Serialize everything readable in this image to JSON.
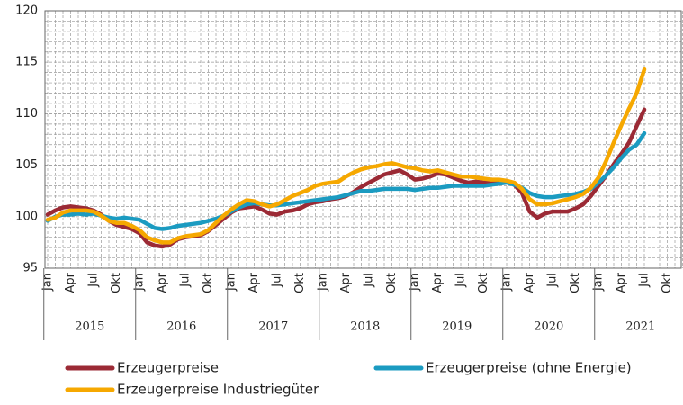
{
  "chart_data": {
    "type": "line",
    "categories": [
      "Jan",
      null,
      null,
      "Apr",
      null,
      null,
      "Jul",
      null,
      null,
      "Okt",
      null,
      null,
      "Jan",
      null,
      null,
      "Apr",
      null,
      null,
      "Jul",
      null,
      null,
      "Okt",
      null,
      null,
      "Jan",
      null,
      null,
      "Apr",
      null,
      null,
      "Jul",
      null,
      null,
      "Okt",
      null,
      null,
      "Jan",
      null,
      null,
      "Apr",
      null,
      null,
      "Jul",
      null,
      null,
      "Okt",
      null,
      null,
      "Jan",
      null,
      null,
      "Apr",
      null,
      null,
      "Jul",
      null,
      null,
      "Okt",
      null,
      null,
      "Jan",
      null,
      null,
      "Apr",
      null,
      null,
      "Jul",
      null,
      null,
      "Okt",
      null,
      null,
      "Jan",
      null,
      null,
      "Apr",
      null,
      null,
      "Jul",
      null,
      null,
      "Okt",
      null,
      null
    ],
    "years": [
      "2015",
      "2016",
      "2017",
      "2018",
      "2019",
      "2020",
      "2021"
    ],
    "ylim": [
      95,
      120
    ],
    "yticks": [
      95,
      100,
      105,
      110,
      115,
      120
    ],
    "minor_grid_step": 1,
    "grid": true,
    "legend": "bottom",
    "series": [
      {
        "name": "Erzeugerpreise",
        "color": "#9b2a35",
        "values": [
          100.2,
          100.6,
          100.9,
          101.0,
          100.9,
          100.8,
          100.6,
          100.2,
          99.6,
          99.2,
          99.0,
          98.8,
          98.4,
          97.5,
          97.2,
          97.1,
          97.3,
          97.8,
          98.0,
          98.1,
          98.2,
          98.6,
          99.2,
          99.8,
          100.4,
          100.8,
          100.9,
          101.0,
          100.7,
          100.3,
          100.2,
          100.5,
          100.6,
          100.8,
          101.2,
          101.4,
          101.5,
          101.7,
          101.8,
          102.0,
          102.4,
          102.9,
          103.3,
          103.7,
          104.1,
          104.3,
          104.5,
          104.1,
          103.6,
          103.7,
          103.9,
          104.2,
          104.1,
          103.8,
          103.5,
          103.3,
          103.4,
          103.3,
          103.4,
          103.5,
          103.4,
          103.1,
          102.3,
          100.5,
          99.9,
          100.3,
          100.5,
          100.5,
          100.5,
          100.8,
          101.2,
          102.0,
          103.0,
          104.0,
          105.1,
          106.1,
          107.2,
          108.8,
          110.4,
          null,
          null,
          null,
          null,
          null
        ]
      },
      {
        "name": "Erzeugerpreise (ohne Energie)",
        "color": "#1b9bc1",
        "values": [
          99.6,
          100.0,
          100.2,
          100.2,
          100.3,
          100.2,
          100.3,
          100.1,
          99.9,
          99.8,
          99.9,
          99.8,
          99.7,
          99.3,
          98.9,
          98.8,
          98.9,
          99.1,
          99.2,
          99.3,
          99.4,
          99.6,
          99.8,
          100.1,
          100.5,
          100.9,
          101.2,
          101.3,
          101.2,
          101.1,
          101.1,
          101.2,
          101.3,
          101.4,
          101.5,
          101.6,
          101.7,
          101.8,
          101.9,
          102.1,
          102.3,
          102.5,
          102.5,
          102.6,
          102.7,
          102.7,
          102.7,
          102.7,
          102.6,
          102.7,
          102.8,
          102.8,
          102.9,
          103.0,
          103.0,
          103.0,
          103.0,
          103.0,
          103.1,
          103.2,
          103.3,
          103.1,
          102.8,
          102.3,
          102.0,
          101.9,
          101.9,
          102.0,
          102.1,
          102.2,
          102.4,
          102.7,
          103.3,
          104.0,
          104.8,
          105.7,
          106.5,
          107.0,
          108.1,
          null,
          null,
          null,
          null,
          null
        ]
      },
      {
        "name": "Erzeugerpreise Industriegüter",
        "color": "#f6a800",
        "values": [
          99.7,
          99.9,
          100.4,
          100.6,
          100.6,
          100.6,
          100.5,
          100.1,
          99.6,
          99.4,
          99.4,
          99.1,
          98.7,
          98.0,
          97.7,
          97.5,
          97.5,
          97.9,
          98.1,
          98.2,
          98.3,
          98.7,
          99.4,
          100.1,
          100.7,
          101.2,
          101.6,
          101.5,
          101.2,
          101.0,
          101.2,
          101.6,
          102.0,
          102.3,
          102.6,
          103.0,
          103.2,
          103.3,
          103.4,
          103.9,
          104.3,
          104.6,
          104.8,
          104.9,
          105.1,
          105.2,
          105.0,
          104.8,
          104.7,
          104.5,
          104.4,
          104.5,
          104.3,
          104.1,
          103.9,
          103.9,
          103.8,
          103.7,
          103.6,
          103.6,
          103.5,
          103.3,
          102.7,
          101.7,
          101.2,
          101.2,
          101.3,
          101.5,
          101.7,
          101.9,
          102.2,
          102.8,
          103.8,
          105.4,
          107.2,
          108.9,
          110.5,
          112.0,
          114.3,
          null,
          null,
          null,
          null,
          null
        ]
      }
    ]
  }
}
